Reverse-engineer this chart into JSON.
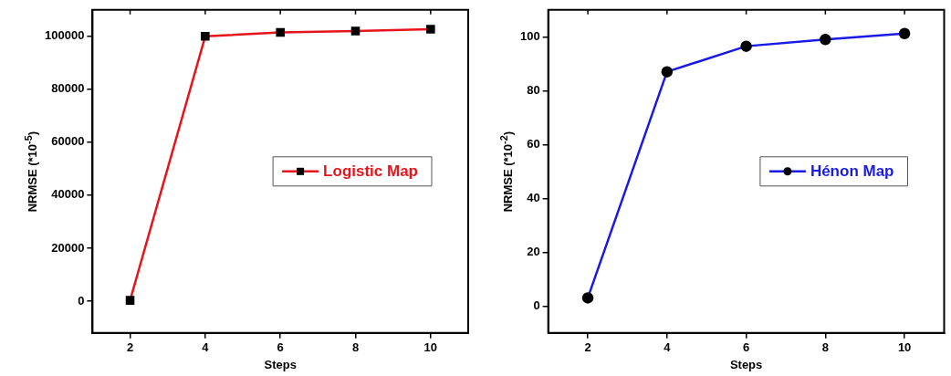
{
  "chart_data": [
    {
      "type": "line",
      "xlabel": "Steps",
      "ylabel": "NRMSE (*10$^{-5}$)",
      "x": [
        2,
        4,
        6,
        8,
        10
      ],
      "series": [
        {
          "name": "Logistic Map",
          "color": "#e8141b",
          "values": [
            300,
            100000,
            101500,
            102000,
            102700
          ]
        }
      ],
      "xlim": [
        1,
        11
      ],
      "xticks": [
        2,
        4,
        6,
        8,
        10
      ],
      "ylim": [
        -12000,
        110000
      ],
      "yticks": [
        0,
        20000,
        40000,
        60000,
        80000,
        100000
      ],
      "grid": false,
      "legend": "right",
      "marker": "square",
      "line_style": "solid"
    },
    {
      "type": "line",
      "xlabel": "Steps",
      "ylabel": "NRMSE (*10$^{-2}$)",
      "x": [
        2,
        4,
        6,
        8,
        10
      ],
      "series": [
        {
          "name": "Hénon Map",
          "color": "#1a1ae6",
          "values": [
            3,
            87,
            96.5,
            99,
            101.2
          ]
        }
      ],
      "xlim": [
        1,
        11
      ],
      "xticks": [
        2,
        4,
        6,
        8,
        10
      ],
      "ylim": [
        -10,
        110
      ],
      "yticks": [
        0,
        20,
        40,
        60,
        80,
        100
      ],
      "grid": false,
      "legend": "right",
      "marker": "circle",
      "line_style": "solid"
    }
  ]
}
